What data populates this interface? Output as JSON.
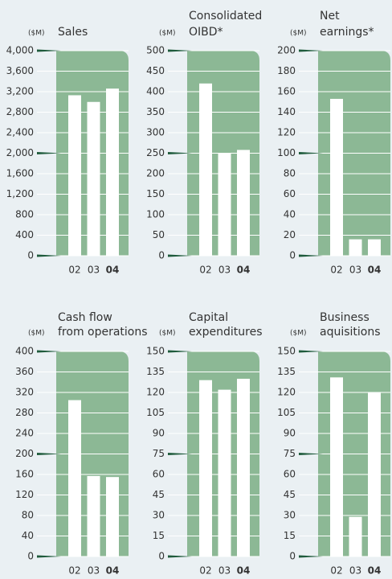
{
  "chart_data": [
    {
      "type": "bar",
      "title": [
        "Sales"
      ],
      "unit": "($M)",
      "categories": [
        "02",
        "03",
        "04"
      ],
      "values": [
        3130,
        3000,
        3260
      ],
      "color": "#ffffff",
      "ylim": [
        0,
        4000
      ],
      "yticks": [
        0,
        400,
        800,
        {
          "value": 1200,
          "label": "1,200"
        },
        {
          "value": 1600,
          "label": "1,600"
        },
        {
          "value": 2000,
          "label": "2,000"
        },
        {
          "value": 2400,
          "label": "2,400"
        },
        {
          "value": 2800,
          "label": "2,800"
        },
        {
          "value": 3200,
          "label": "3,200"
        },
        {
          "value": 3600,
          "label": "3,600"
        },
        {
          "value": 4000,
          "label": "4,000"
        }
      ],
      "grid": true
    },
    {
      "type": "bar",
      "title": [
        "Consolidated",
        "OIBD*"
      ],
      "unit": "($M)",
      "categories": [
        "02",
        "03",
        "04"
      ],
      "values": [
        420,
        250,
        258
      ],
      "color": "#ffffff",
      "ylim": [
        0,
        500
      ],
      "yticks": [
        0,
        50,
        100,
        150,
        200,
        250,
        300,
        350,
        400,
        450,
        500
      ],
      "grid": true
    },
    {
      "type": "bar",
      "title": [
        "Net",
        "earnings*"
      ],
      "unit": "($M)",
      "categories": [
        "02",
        "03",
        "04"
      ],
      "values": [
        153,
        16,
        16
      ],
      "color": "#ffffff",
      "ylim": [
        0,
        200
      ],
      "yticks": [
        0,
        20,
        40,
        60,
        80,
        100,
        120,
        140,
        160,
        180,
        200
      ],
      "grid": true
    },
    {
      "type": "bar",
      "title": [
        "Cash flow",
        "from operations"
      ],
      "unit": "($M)",
      "categories": [
        "02",
        "03",
        "04"
      ],
      "values": [
        305,
        157,
        155
      ],
      "color": "#ffffff",
      "ylim": [
        0,
        400
      ],
      "yticks": [
        0,
        40,
        80,
        120,
        160,
        200,
        240,
        280,
        320,
        360,
        400
      ],
      "grid": true
    },
    {
      "type": "bar",
      "title": [
        "Capital",
        "expenditures"
      ],
      "unit": "($M)",
      "categories": [
        "02",
        "03",
        "04"
      ],
      "values": [
        129,
        122,
        130
      ],
      "color": "#ffffff",
      "ylim": [
        0,
        150
      ],
      "yticks": [
        0,
        15,
        30,
        45,
        60,
        75,
        90,
        105,
        120,
        135,
        150
      ],
      "grid": true
    },
    {
      "type": "bar",
      "title": [
        "Business",
        "aquisitions"
      ],
      "unit": "($M)",
      "categories": [
        "02",
        "03",
        "04"
      ],
      "values": [
        131,
        29,
        120
      ],
      "color": "#ffffff",
      "ylim": [
        0,
        150
      ],
      "yticks": [
        0,
        15,
        30,
        45,
        60,
        75,
        90,
        105,
        120,
        135,
        150
      ],
      "grid": true
    }
  ]
}
